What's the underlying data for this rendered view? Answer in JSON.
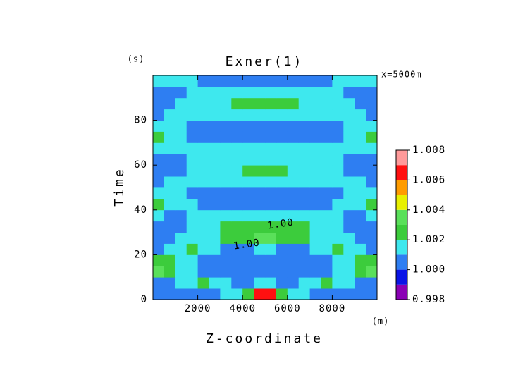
{
  "chart_data": {
    "type": "contour",
    "title": "Exner(1)",
    "subtitle": "x=5000m",
    "x_label": "Z-coordinate",
    "x_unit": "(m)",
    "y_label": "Time",
    "y_unit": "(s)",
    "annotations": [
      "1.00",
      "1.00"
    ],
    "xlim": [
      0,
      10000
    ],
    "ylim": [
      0,
      100
    ],
    "xticks": [
      2000,
      4000,
      6000,
      8000
    ],
    "yticks": [
      0,
      20,
      40,
      60,
      80
    ],
    "x": [
      250,
      750,
      1250,
      1750,
      2250,
      2750,
      3250,
      3750,
      4250,
      4750,
      5250,
      5750,
      6250,
      6750,
      7250,
      7750,
      8250,
      8750,
      9250,
      9750
    ],
    "y": [
      2.5,
      7.5,
      12.5,
      17.5,
      22.5,
      27.5,
      32.5,
      37.5,
      42.5,
      47.5,
      52.5,
      57.5,
      62.5,
      67.5,
      72.5,
      77.5,
      82.5,
      87.5,
      92.5,
      97.5
    ],
    "z": [
      [
        1.0005,
        1.0005,
        1.0005,
        1.0005,
        1.0005,
        1.0005,
        1.0015,
        1.0015,
        1.0025,
        1.0065,
        1.0065,
        1.0025,
        1.0015,
        1.0015,
        1.0005,
        1.0005,
        1.0005,
        1.0005,
        1.0005,
        1.0005
      ],
      [
        1.0005,
        1.0005,
        1.0015,
        1.0015,
        1.0025,
        1.0015,
        1.0015,
        1.0005,
        1.0005,
        1.0015,
        1.0015,
        1.0005,
        1.0005,
        1.0015,
        1.0015,
        1.0025,
        1.0015,
        1.0015,
        1.0005,
        1.0005
      ],
      [
        1.0035,
        1.0025,
        1.0015,
        1.0015,
        1.0005,
        1.0005,
        1.0005,
        1.0005,
        1.0005,
        1.0005,
        1.0005,
        1.0005,
        1.0005,
        1.0005,
        1.0005,
        1.0005,
        1.0015,
        1.0015,
        1.0025,
        1.0035
      ],
      [
        1.0025,
        1.0025,
        1.0015,
        1.0015,
        1.0005,
        1.0005,
        1.0005,
        1.0005,
        1.0005,
        1.0005,
        1.0005,
        1.0005,
        1.0005,
        1.0005,
        1.0005,
        1.0005,
        1.0015,
        1.0015,
        1.0025,
        1.0025
      ],
      [
        1.0005,
        1.0015,
        1.0015,
        1.0025,
        1.0015,
        1.0015,
        1.0005,
        1.0005,
        1.0005,
        1.0015,
        1.0015,
        1.0005,
        1.0005,
        1.0005,
        1.0015,
        1.0015,
        1.0025,
        1.0015,
        1.0015,
        1.0005
      ],
      [
        1.0005,
        1.0005,
        1.0015,
        1.0015,
        1.0015,
        1.0015,
        1.0025,
        1.0025,
        1.0025,
        1.0035,
        1.0035,
        1.0025,
        1.0025,
        1.0025,
        1.0015,
        1.0015,
        1.0015,
        1.0015,
        1.0005,
        1.0005
      ],
      [
        1.0005,
        1.0005,
        1.0005,
        1.0015,
        1.0015,
        1.0015,
        1.0025,
        1.0025,
        1.0025,
        1.0025,
        1.0025,
        1.0025,
        1.0025,
        1.0025,
        1.0015,
        1.0015,
        1.0015,
        1.0005,
        1.0005,
        1.0005
      ],
      [
        1.0015,
        1.0005,
        1.0005,
        1.0015,
        1.0015,
        1.0015,
        1.0015,
        1.0015,
        1.0015,
        1.0015,
        1.0015,
        1.0015,
        1.0015,
        1.0015,
        1.0015,
        1.0015,
        1.0015,
        1.0005,
        1.0005,
        1.0015
      ],
      [
        1.0025,
        1.0015,
        1.0015,
        1.0015,
        1.0005,
        1.0005,
        1.0005,
        1.0005,
        1.0005,
        1.0005,
        1.0005,
        1.0005,
        1.0005,
        1.0005,
        1.0005,
        1.0005,
        1.0015,
        1.0015,
        1.0015,
        1.0025
      ],
      [
        1.0015,
        1.0015,
        1.0015,
        1.0005,
        1.0005,
        1.0005,
        1.0005,
        1.0005,
        1.0005,
        1.0005,
        1.0005,
        1.0005,
        1.0005,
        1.0005,
        1.0005,
        1.0005,
        1.0005,
        1.0015,
        1.0015,
        1.0015
      ],
      [
        1.0005,
        1.0015,
        1.0015,
        1.0015,
        1.0015,
        1.0015,
        1.0015,
        1.0015,
        1.0015,
        1.0015,
        1.0015,
        1.0015,
        1.0015,
        1.0015,
        1.0015,
        1.0015,
        1.0015,
        1.0015,
        1.0015,
        1.0005
      ],
      [
        1.0005,
        1.0005,
        1.0005,
        1.0015,
        1.0015,
        1.0015,
        1.0015,
        1.0015,
        1.0025,
        1.0025,
        1.0025,
        1.0025,
        1.0015,
        1.0015,
        1.0015,
        1.0015,
        1.0015,
        1.0005,
        1.0005,
        1.0005
      ],
      [
        1.0005,
        1.0005,
        1.0005,
        1.0015,
        1.0015,
        1.0015,
        1.0015,
        1.0015,
        1.0015,
        1.0015,
        1.0015,
        1.0015,
        1.0015,
        1.0015,
        1.0015,
        1.0015,
        1.0015,
        1.0005,
        1.0005,
        1.0005
      ],
      [
        1.0015,
        1.0015,
        1.0015,
        1.0015,
        1.0015,
        1.0015,
        1.0015,
        1.0015,
        1.0015,
        1.0015,
        1.0015,
        1.0015,
        1.0015,
        1.0015,
        1.0015,
        1.0015,
        1.0015,
        1.0015,
        1.0015,
        1.0015
      ],
      [
        1.0025,
        1.0015,
        1.0015,
        1.0005,
        1.0005,
        1.0005,
        1.0005,
        1.0005,
        1.0005,
        1.0005,
        1.0005,
        1.0005,
        1.0005,
        1.0005,
        1.0005,
        1.0005,
        1.0005,
        1.0015,
        1.0015,
        1.0025
      ],
      [
        1.0015,
        1.0015,
        1.0015,
        1.0005,
        1.0005,
        1.0005,
        1.0005,
        1.0005,
        1.0005,
        1.0005,
        1.0005,
        1.0005,
        1.0005,
        1.0005,
        1.0005,
        1.0005,
        1.0005,
        1.0015,
        1.0015,
        1.0015
      ],
      [
        1.0005,
        1.0015,
        1.0015,
        1.0015,
        1.0015,
        1.0015,
        1.0015,
        1.0015,
        1.0015,
        1.0015,
        1.0015,
        1.0015,
        1.0015,
        1.0015,
        1.0015,
        1.0015,
        1.0015,
        1.0015,
        1.0015,
        1.0005
      ],
      [
        1.0005,
        1.0005,
        1.0015,
        1.0015,
        1.0015,
        1.0015,
        1.0015,
        1.0025,
        1.0025,
        1.0025,
        1.0025,
        1.0025,
        1.0025,
        1.0015,
        1.0015,
        1.0015,
        1.0015,
        1.0015,
        1.0005,
        1.0005
      ],
      [
        1.0005,
        1.0005,
        1.0005,
        1.0015,
        1.0015,
        1.0015,
        1.0015,
        1.0015,
        1.0015,
        1.0015,
        1.0015,
        1.0015,
        1.0015,
        1.0015,
        1.0015,
        1.0015,
        1.0015,
        1.0005,
        1.0005,
        1.0005
      ],
      [
        1.0015,
        1.0015,
        1.0015,
        1.0015,
        1.0005,
        1.0005,
        1.0005,
        1.0005,
        1.0005,
        1.0005,
        1.0005,
        1.0005,
        1.0005,
        1.0005,
        1.0005,
        1.0005,
        1.0015,
        1.0015,
        1.0015,
        1.0015
      ]
    ],
    "levels": [
      0.998,
      0.999,
      1,
      1.001,
      1.002,
      1.003,
      1.004,
      1.005,
      1.006,
      1.007,
      1.008
    ],
    "colors": [
      "#8a00b4",
      "#0a14e6",
      "#2e7ef2",
      "#3ee8ee",
      "#3ccc3c",
      "#5ae05a",
      "#e8f000",
      "#ff9c00",
      "#ff1010",
      "#ff9a9a"
    ],
    "cbar_ticks": [
      0.998,
      {
        "value": 1,
        "label": "1.000"
      },
      1.002,
      1.004,
      1.006,
      1.008
    ]
  }
}
